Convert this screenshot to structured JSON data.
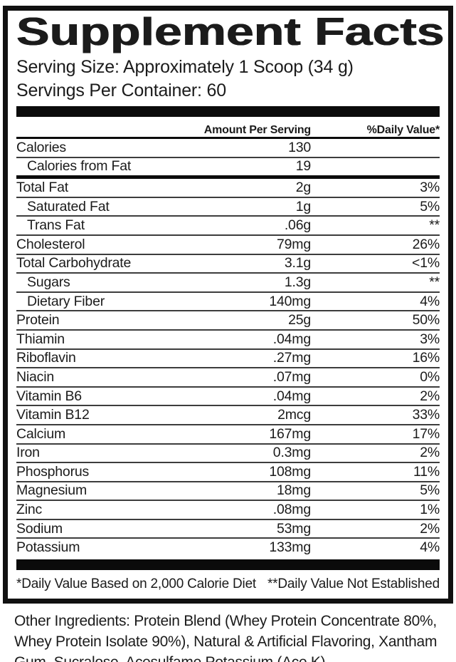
{
  "label": {
    "title": "Supplement Facts",
    "serving_size": "Serving Size: Approximately 1 Scoop (34 g)",
    "servings_per_container": "Servings Per Container: 60",
    "columns": {
      "amount": "Amount Per Serving",
      "daily_value": "%Daily Value*"
    },
    "rows": [
      {
        "name": "Calories",
        "amount": "130",
        "dv": "",
        "indent": false,
        "thick": false
      },
      {
        "name": "Calories from Fat",
        "amount": "19",
        "dv": "",
        "indent": true,
        "thick": true
      },
      {
        "name": "Total Fat",
        "amount": "2g",
        "dv": "3%",
        "indent": false,
        "thick": false
      },
      {
        "name": "Saturated Fat",
        "amount": "1g",
        "dv": "5%",
        "indent": true,
        "thick": false
      },
      {
        "name": "Trans Fat",
        "amount": ".06g",
        "dv": "**",
        "indent": true,
        "thick": false
      },
      {
        "name": "Cholesterol",
        "amount": "79mg",
        "dv": "26%",
        "indent": false,
        "thick": false
      },
      {
        "name": "Total Carbohydrate",
        "amount": "3.1g",
        "dv": "<1%",
        "indent": false,
        "thick": false
      },
      {
        "name": "Sugars",
        "amount": "1.3g",
        "dv": "**",
        "indent": true,
        "thick": false
      },
      {
        "name": "Dietary Fiber",
        "amount": "140mg",
        "dv": "4%",
        "indent": true,
        "thick": false
      },
      {
        "name": "Protein",
        "amount": "25g",
        "dv": "50%",
        "indent": false,
        "thick": false
      },
      {
        "name": "Thiamin",
        "amount": ".04mg",
        "dv": "3%",
        "indent": false,
        "thick": false
      },
      {
        "name": "Riboflavin",
        "amount": ".27mg",
        "dv": "16%",
        "indent": false,
        "thick": false
      },
      {
        "name": "Niacin",
        "amount": ".07mg",
        "dv": "0%",
        "indent": false,
        "thick": false
      },
      {
        "name": "Vitamin B6",
        "amount": ".04mg",
        "dv": "2%",
        "indent": false,
        "thick": false
      },
      {
        "name": "Vitamin B12",
        "amount": "2mcg",
        "dv": "33%",
        "indent": false,
        "thick": false
      },
      {
        "name": "Calcium",
        "amount": "167mg",
        "dv": "17%",
        "indent": false,
        "thick": false
      },
      {
        "name": "Iron",
        "amount": "0.3mg",
        "dv": "2%",
        "indent": false,
        "thick": false
      },
      {
        "name": "Phosphorus",
        "amount": "108mg",
        "dv": "11%",
        "indent": false,
        "thick": false
      },
      {
        "name": "Magnesium",
        "amount": "18mg",
        "dv": "5%",
        "indent": false,
        "thick": false
      },
      {
        "name": "Zinc",
        "amount": ".08mg",
        "dv": "1%",
        "indent": false,
        "thick": false
      },
      {
        "name": "Sodium",
        "amount": "53mg",
        "dv": "2%",
        "indent": false,
        "thick": false
      },
      {
        "name": "Potassium",
        "amount": "133mg",
        "dv": "4%",
        "indent": false,
        "thick": false
      }
    ],
    "footnotes": {
      "left": "*Daily Value Based on 2,000 Calorie Diet",
      "right": "**Daily Value Not Established"
    },
    "other_ingredients": "Other Ingredients: Protein Blend (Whey Protein Concentrate 80%, Whey Protein Isolate 90%), Natural & Artificial Flavoring, Xantham Gum, Sucralose, Acesulfame Potassium (Ace K)",
    "colors": {
      "ink": "#1b1b1b",
      "rule_thin": "#3d3d3d",
      "rule_thick": "#0b0b0b"
    }
  }
}
